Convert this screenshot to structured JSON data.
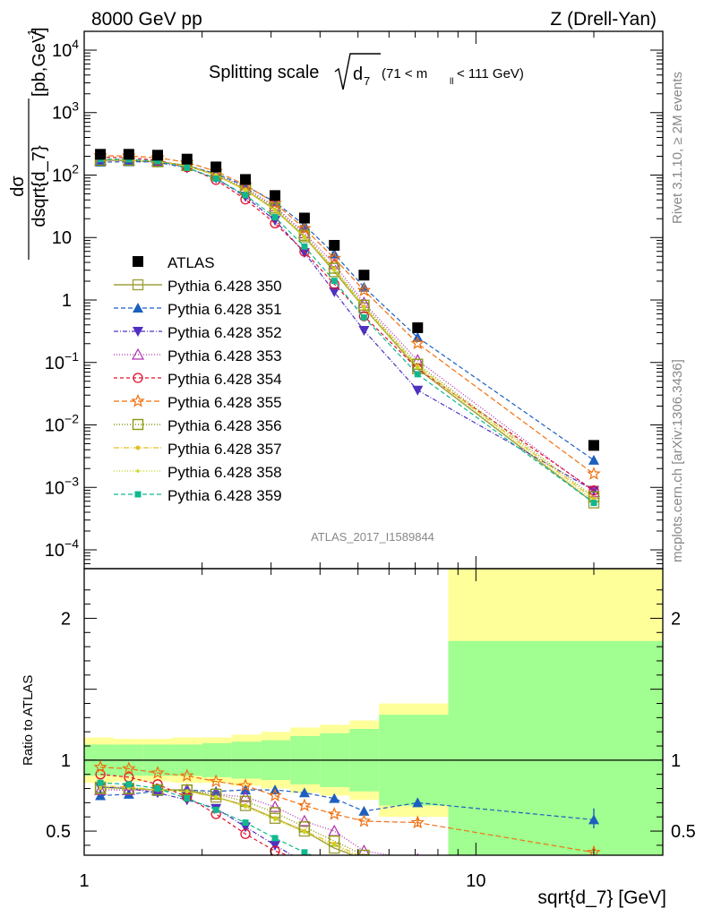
{
  "header": {
    "left": "8000 GeV pp",
    "right": "Z (Drell-Yan)"
  },
  "side_labels": {
    "rivet": "Rivet 3.1.10, ≥ 2M events",
    "mcplots": "mcplots.cern.ch [arXiv:1306.3436]"
  },
  "chart_data": {
    "type": "line",
    "title": "Splitting scale √d₇ (71 < mₗₗ < 111 GeV)",
    "title_parts": {
      "prefix": "Splitting scale",
      "sub": "7",
      "range": "(71 < m",
      "range_sub": "ll",
      "range_end": " < 111 GeV)"
    },
    "xlabel": "sqrt{d_7} [GeV]",
    "ylabel": "dσ / dsqrt{d_7} [pb,GeV⁻¹]",
    "ylabel_parts": {
      "num": "dσ",
      "den": "dsqrt{d_7}",
      "unit": "[pb,GeV",
      "unit_sup": "-1",
      "unit_end": "]"
    },
    "analysis_label": "ATLAS_2017_I1589844",
    "x_scale": "log",
    "y_scale": "log",
    "xlim": [
      1.0,
      30.0
    ],
    "ylim": [
      5e-05,
      20000
    ],
    "x_ticks": [
      {
        "v": 1,
        "label": "1"
      },
      {
        "v": 10,
        "label": "10"
      }
    ],
    "y_ticks": [
      {
        "v": 0.0001,
        "base": "10",
        "exp": "−4"
      },
      {
        "v": 0.001,
        "base": "10",
        "exp": "−3"
      },
      {
        "v": 0.01,
        "base": "10",
        "exp": "−2"
      },
      {
        "v": 0.1,
        "base": "10",
        "exp": "−1"
      },
      {
        "v": 1,
        "base": "1",
        "exp": ""
      },
      {
        "v": 10,
        "base": "10",
        "exp": ""
      },
      {
        "v": 100,
        "base": "10",
        "exp": "2"
      },
      {
        "v": 1000,
        "base": "10",
        "exp": "3"
      },
      {
        "v": 10000,
        "base": "10",
        "exp": "4"
      }
    ],
    "x": [
      1.1,
      1.3,
      1.54,
      1.83,
      2.17,
      2.58,
      3.07,
      3.65,
      4.35,
      5.18,
      7.1,
      20.0
    ],
    "bin_edges": [
      1.0,
      1.19,
      1.41,
      1.68,
      2.0,
      2.38,
      2.83,
      3.36,
      4.0,
      4.76,
      5.66,
      8.5,
      30.0
    ],
    "data": {
      "name": "ATLAS",
      "values": [
        215,
        215,
        208,
        180,
        135,
        85,
        47,
        20.5,
        7.5,
        2.5,
        0.36,
        0.0047
      ],
      "band_inner_up": [
        1.11,
        1.11,
        1.11,
        1.11,
        1.12,
        1.13,
        1.14,
        1.17,
        1.19,
        1.22,
        1.32,
        1.84
      ],
      "band_inner_down": [
        0.89,
        0.89,
        0.89,
        0.89,
        0.88,
        0.87,
        0.86,
        0.83,
        0.81,
        0.78,
        0.68,
        0.16
      ],
      "band_outer_up": [
        1.16,
        1.15,
        1.15,
        1.16,
        1.16,
        1.18,
        1.2,
        1.23,
        1.25,
        1.28,
        1.4,
        2.4
      ],
      "band_outer_down": [
        0.84,
        0.85,
        0.85,
        0.84,
        0.84,
        0.82,
        0.8,
        0.77,
        0.75,
        0.72,
        0.6,
        0.05
      ]
    },
    "series": [
      {
        "name": "Pythia 6.428 350",
        "color": "#a0a040",
        "marker": "square-open",
        "dash": "solid",
        "width": 1.4,
        "ratio": [
          0.81,
          0.8,
          0.79,
          0.79,
          0.74,
          0.68,
          0.59,
          0.5,
          0.38,
          0.3,
          0.22,
          0.12
        ]
      },
      {
        "name": "Pythia 6.428 351",
        "color": "#1c5fbf",
        "marker": "triangle-up",
        "dash": "5,3",
        "width": 1.2,
        "ratio": [
          0.75,
          0.76,
          0.78,
          0.79,
          0.78,
          0.79,
          0.79,
          0.77,
          0.73,
          0.64,
          0.7,
          0.58
        ]
      },
      {
        "name": "Pythia 6.428 352",
        "color": "#5030c0",
        "marker": "triangle-down",
        "dash": "5,2,1,2",
        "width": 1.2,
        "ratio": [
          0.81,
          0.8,
          0.77,
          0.72,
          0.66,
          0.53,
          0.4,
          0.28,
          0.18,
          0.13,
          0.1,
          0.19
        ]
      },
      {
        "name": "Pythia 6.428 353",
        "color": "#b030b0",
        "marker": "triangle-up-open",
        "dash": "1,2",
        "width": 1.3,
        "ratio": [
          0.79,
          0.79,
          0.79,
          0.79,
          0.76,
          0.74,
          0.67,
          0.57,
          0.5,
          0.36,
          0.3,
          0.18
        ]
      },
      {
        "name": "Pythia 6.428 354",
        "color": "#e0102c",
        "marker": "circle-open",
        "dash": "4,3",
        "width": 1.2,
        "ratio": [
          0.9,
          0.88,
          0.83,
          0.74,
          0.62,
          0.48,
          0.36,
          0.29,
          0.24,
          0.22,
          0.22,
          0.19
        ]
      },
      {
        "name": "Pythia 6.428 355",
        "color": "#f07010",
        "marker": "star-open",
        "dash": "6,3",
        "width": 1.2,
        "ratio": [
          0.95,
          0.94,
          0.91,
          0.89,
          0.85,
          0.82,
          0.75,
          0.68,
          0.62,
          0.57,
          0.56,
          0.35
        ]
      },
      {
        "name": "Pythia 6.428 356",
        "color": "#8a9a10",
        "marker": "square-open",
        "dash": "1,2",
        "width": 1.4,
        "ratio": [
          0.8,
          0.8,
          0.79,
          0.79,
          0.76,
          0.71,
          0.63,
          0.53,
          0.43,
          0.33,
          0.26,
          0.15
        ]
      },
      {
        "name": "Pythia 6.428 357",
        "color": "#e0c020",
        "marker": "dot",
        "dash": "6,2,1,2",
        "width": 1.2,
        "ratio": [
          0.82,
          0.81,
          0.79,
          0.78,
          0.74,
          0.68,
          0.59,
          0.5,
          0.41,
          0.31,
          0.24,
          0.14
        ]
      },
      {
        "name": "Pythia 6.428 358",
        "color": "#c8d820",
        "marker": "dot-small",
        "dash": "1,2",
        "width": 1.3,
        "ratio": [
          0.8,
          0.8,
          0.79,
          0.78,
          0.74,
          0.67,
          0.58,
          0.49,
          0.4,
          0.3,
          0.23,
          0.13
        ]
      },
      {
        "name": "Pythia 6.428 359",
        "color": "#10b890",
        "marker": "square-filled-small",
        "dash": "5,3",
        "width": 1.2,
        "ratio": [
          0.84,
          0.83,
          0.8,
          0.73,
          0.65,
          0.56,
          0.45,
          0.35,
          0.27,
          0.21,
          0.18,
          0.12
        ]
      }
    ],
    "ratio_panel": {
      "ylabel": "Ratio to ATLAS",
      "ylim": [
        0.33,
        2.35
      ],
      "y_ticks": [
        {
          "v": 0.5,
          "label": "0.5"
        },
        {
          "v": 1,
          "label": "1"
        },
        {
          "v": 2,
          "label": "2"
        }
      ],
      "last_point_351_err": [
        0.52,
        0.66
      ],
      "last_point_355_err": [
        0.53,
        0.59
      ]
    },
    "legend": {
      "position": "left-middle"
    },
    "colors": {
      "band_inner": "#a0ff90",
      "band_outer": "#ffff99"
    }
  }
}
